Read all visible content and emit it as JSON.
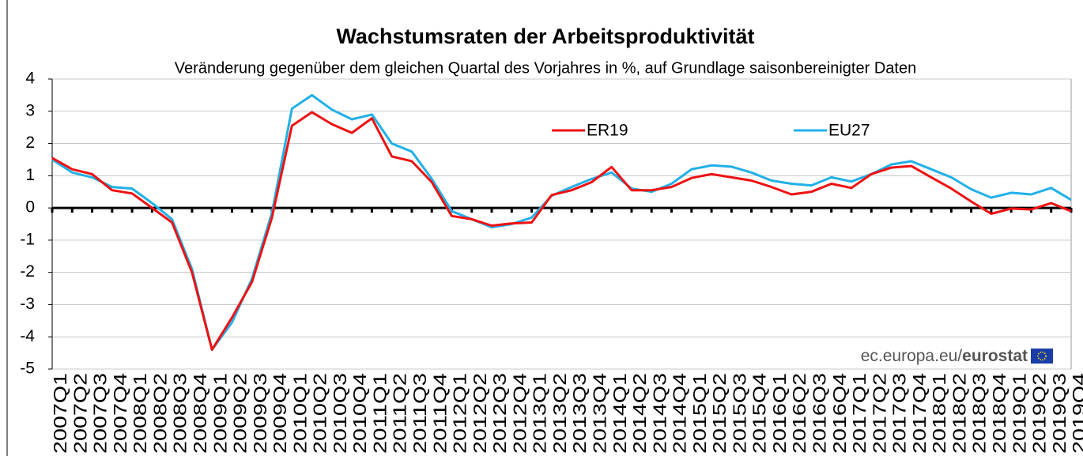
{
  "chart_data": {
    "type": "line",
    "title": "Wachstumsraten  der Arbeitsproduktivität",
    "subtitle": "Veränderung gegenüber dem gleichen Quartal des Vorjahres in %, auf Grundlage saisonbereinigter Daten",
    "source": [
      "ec.europa.eu/",
      "eurostat"
    ],
    "categories": [
      "2007Q1",
      "2007Q2",
      "2007Q3",
      "2007Q4",
      "2008Q1",
      "2008Q2",
      "2008Q3",
      "2008Q4",
      "2009Q1",
      "2009Q2",
      "2009Q3",
      "2009Q4",
      "2010Q1",
      "2010Q2",
      "2010Q3",
      "2010Q4",
      "2011Q1",
      "2011Q2",
      "2011Q3",
      "2011Q4",
      "2012Q1",
      "2012Q2",
      "2012Q3",
      "2012Q4",
      "2013Q1",
      "2013Q2",
      "2013Q3",
      "2013Q4",
      "2014Q1",
      "2014Q2",
      "2014Q3",
      "2014Q4",
      "2015Q1",
      "2015Q2",
      "2015Q3",
      "2015Q4",
      "2016Q1",
      "2016Q2",
      "2016Q3",
      "2016Q4",
      "2017Q1",
      "2017Q2",
      "2017Q3",
      "2017Q4",
      "2018Q1",
      "2018Q2",
      "2018Q3",
      "2018Q4",
      "2019Q1",
      "2019Q2",
      "2019Q3",
      "2019Q4"
    ],
    "series": [
      {
        "name": "ER19",
        "color": "#ee1111",
        "values": [
          1.55,
          1.2,
          1.05,
          0.55,
          0.45,
          0.0,
          -0.45,
          -2.0,
          -4.4,
          -3.4,
          -2.3,
          -0.3,
          2.55,
          2.97,
          2.6,
          2.33,
          2.78,
          1.6,
          1.45,
          0.8,
          -0.25,
          -0.35,
          -0.55,
          -0.48,
          -0.45,
          0.4,
          0.55,
          0.8,
          1.27,
          0.55,
          0.55,
          0.65,
          0.93,
          1.05,
          0.95,
          0.85,
          0.65,
          0.42,
          0.5,
          0.75,
          0.62,
          1.05,
          1.25,
          1.3,
          0.95,
          0.6,
          0.2,
          -0.18,
          -0.02,
          -0.05,
          0.15,
          -0.1
        ]
      },
      {
        "name": "EU27",
        "color": "#22b0e8",
        "values": [
          1.5,
          1.1,
          0.95,
          0.65,
          0.6,
          0.15,
          -0.35,
          -1.9,
          -4.4,
          -3.55,
          -2.2,
          -0.15,
          3.08,
          3.5,
          3.05,
          2.75,
          2.9,
          2.0,
          1.75,
          0.9,
          -0.1,
          -0.35,
          -0.6,
          -0.5,
          -0.3,
          0.38,
          0.65,
          0.9,
          1.1,
          0.6,
          0.5,
          0.75,
          1.2,
          1.32,
          1.28,
          1.1,
          0.85,
          0.75,
          0.7,
          0.95,
          0.82,
          1.05,
          1.35,
          1.45,
          1.2,
          0.95,
          0.58,
          0.32,
          0.47,
          0.42,
          0.62,
          0.25
        ]
      }
    ],
    "ylim": [
      -5,
      4
    ],
    "yticks": [
      -5,
      -4,
      -3,
      -2,
      -1,
      0,
      1,
      2,
      3,
      4
    ],
    "grid": true
  }
}
